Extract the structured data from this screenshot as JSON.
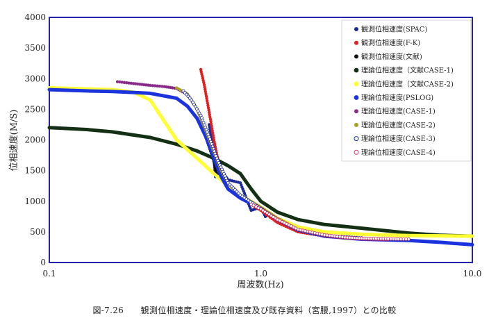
{
  "caption": "図-7.26　　観測位相速度・理論位相速度及び既存資料（宮腰,1997）との比較",
  "chart_data": {
    "type": "scatter",
    "title": "",
    "xlabel": "周波数(Hz)",
    "ylabel": "位相速度(M/S)",
    "xscale": "log",
    "xlim": [
      0.1,
      10.0
    ],
    "ylim": [
      0,
      4000
    ],
    "xticks": [
      "0.1",
      "1.0",
      "10.0"
    ],
    "yticks": [
      "0",
      "500",
      "1000",
      "1500",
      "2000",
      "2500",
      "3000",
      "3500",
      "4000"
    ],
    "grid": false,
    "legend_position": "top-right",
    "series": [
      {
        "name": "観測位相速度(SPAC)",
        "color": "#1a2a9a",
        "style": "dots",
        "points": [
          [
            0.57,
            2250
          ],
          [
            0.58,
            2100
          ],
          [
            0.6,
            1700
          ],
          [
            0.61,
            1400
          ],
          [
            0.65,
            1500
          ],
          [
            0.7,
            1350
          ],
          [
            0.8,
            1300
          ],
          [
            0.9,
            850
          ],
          [
            1.0,
            900
          ],
          [
            1.05,
            750
          ]
        ]
      },
      {
        "name": "観測位相速度(F-K)",
        "color": "#e02020",
        "style": "dots",
        "points": [
          [
            0.52,
            3150
          ],
          [
            0.54,
            2900
          ],
          [
            0.56,
            2600
          ],
          [
            0.58,
            2300
          ],
          [
            0.6,
            2000
          ],
          [
            0.62,
            1750
          ],
          [
            0.65,
            1500
          ],
          [
            0.7,
            1300
          ],
          [
            0.8,
            1100
          ],
          [
            0.9,
            950
          ],
          [
            1.0,
            850
          ],
          [
            1.2,
            650
          ],
          [
            1.5,
            500
          ],
          [
            2.0,
            430
          ],
          [
            2.5,
            400
          ],
          [
            3.0,
            390
          ],
          [
            4.0,
            385
          ]
        ]
      },
      {
        "name": "観測位相速度(文献)",
        "color": "#111111",
        "style": "dots",
        "points": [
          [
            0.55,
            2050
          ],
          [
            0.6,
            1650
          ],
          [
            0.62,
            1400
          ]
        ]
      },
      {
        "name": "理論位相速度（文献CASE-1)",
        "color": "#143014",
        "style": "thick",
        "points": [
          [
            0.1,
            2200
          ],
          [
            0.15,
            2170
          ],
          [
            0.2,
            2130
          ],
          [
            0.3,
            2040
          ],
          [
            0.4,
            1930
          ],
          [
            0.5,
            1820
          ],
          [
            0.6,
            1700
          ],
          [
            0.7,
            1580
          ],
          [
            0.8,
            1450
          ],
          [
            0.9,
            1200
          ],
          [
            1.0,
            1000
          ],
          [
            1.2,
            820
          ],
          [
            1.5,
            700
          ],
          [
            2.0,
            620
          ],
          [
            3.0,
            560
          ],
          [
            5.0,
            480
          ],
          [
            7.0,
            445
          ],
          [
            10.0,
            430
          ]
        ]
      },
      {
        "name": "理論位相速度（文献CASE-2)",
        "color": "#ffff33",
        "style": "thick",
        "points": [
          [
            0.1,
            2850
          ],
          [
            0.2,
            2820
          ],
          [
            0.25,
            2780
          ],
          [
            0.3,
            2650
          ],
          [
            0.35,
            2300
          ],
          [
            0.4,
            2000
          ],
          [
            0.5,
            1700
          ],
          [
            0.6,
            1450
          ],
          [
            0.7,
            1250
          ],
          [
            0.8,
            1100
          ],
          [
            1.0,
            900
          ],
          [
            1.2,
            720
          ],
          [
            1.5,
            580
          ],
          [
            2.0,
            500
          ],
          [
            3.0,
            460
          ],
          [
            5.0,
            440
          ],
          [
            10.0,
            430
          ]
        ]
      },
      {
        "name": "理論位相速度(PSLOG)",
        "color": "#1a33dd",
        "style": "thick",
        "points": [
          [
            0.1,
            2820
          ],
          [
            0.15,
            2800
          ],
          [
            0.2,
            2790
          ],
          [
            0.3,
            2760
          ],
          [
            0.4,
            2680
          ],
          [
            0.45,
            2550
          ],
          [
            0.5,
            2350
          ],
          [
            0.55,
            2050
          ],
          [
            0.6,
            1700
          ],
          [
            0.65,
            1400
          ],
          [
            0.7,
            1200
          ],
          [
            0.8,
            1050
          ],
          [
            1.0,
            880
          ],
          [
            1.2,
            700
          ],
          [
            1.5,
            530
          ],
          [
            2.0,
            430
          ],
          [
            3.0,
            380
          ],
          [
            5.0,
            360
          ],
          [
            7.0,
            330
          ],
          [
            10.0,
            290
          ]
        ]
      },
      {
        "name": "理論位相速度(CASE-1)",
        "color": "#8a2b8a",
        "style": "dots",
        "points": [
          [
            0.21,
            2950
          ],
          [
            0.25,
            2920
          ],
          [
            0.3,
            2890
          ],
          [
            0.35,
            2870
          ],
          [
            0.4,
            2840
          ],
          [
            0.45,
            2740
          ],
          [
            0.5,
            2500
          ],
          [
            0.55,
            2150
          ],
          [
            0.6,
            1800
          ],
          [
            0.65,
            1500
          ],
          [
            0.7,
            1300
          ],
          [
            0.8,
            1100
          ],
          [
            1.0,
            900
          ],
          [
            1.2,
            720
          ],
          [
            1.5,
            540
          ],
          [
            2.0,
            430
          ],
          [
            2.5,
            400
          ],
          [
            3.0,
            380
          ],
          [
            4.0,
            370
          ]
        ]
      },
      {
        "name": "理論位相速度(CASE-2)",
        "color": "#a8a020",
        "style": "dots",
        "points": [
          [
            0.4,
            2850
          ],
          [
            0.45,
            2750
          ],
          [
            0.5,
            2500
          ],
          [
            0.55,
            2150
          ],
          [
            0.6,
            1800
          ],
          [
            0.65,
            1500
          ],
          [
            0.7,
            1300
          ],
          [
            0.8,
            1100
          ],
          [
            1.0,
            900
          ],
          [
            1.2,
            720
          ],
          [
            1.5,
            540
          ],
          [
            2.0,
            440
          ]
        ]
      },
      {
        "name": "理論位相速度(CASE-3)",
        "color": "#1a2a9a",
        "style": "open",
        "points": [
          [
            0.43,
            2800
          ],
          [
            0.47,
            2650
          ],
          [
            0.52,
            2400
          ],
          [
            0.57,
            2050
          ],
          [
            0.62,
            1700
          ],
          [
            0.7,
            1300
          ],
          [
            0.8,
            1100
          ],
          [
            1.0,
            880
          ],
          [
            1.2,
            700
          ],
          [
            1.5,
            530
          ],
          [
            2.0,
            440
          ],
          [
            3.0,
            400
          ]
        ]
      },
      {
        "name": "理論位相速度(CASE-4)",
        "color": "#d03060",
        "style": "open",
        "points": [
          [
            0.9,
            950
          ],
          [
            1.0,
            870
          ],
          [
            1.2,
            700
          ],
          [
            1.5,
            540
          ],
          [
            2.0,
            450
          ],
          [
            2.5,
            410
          ],
          [
            3.0,
            395
          ],
          [
            4.0,
            385
          ],
          [
            5.0,
            380
          ]
        ]
      }
    ]
  }
}
